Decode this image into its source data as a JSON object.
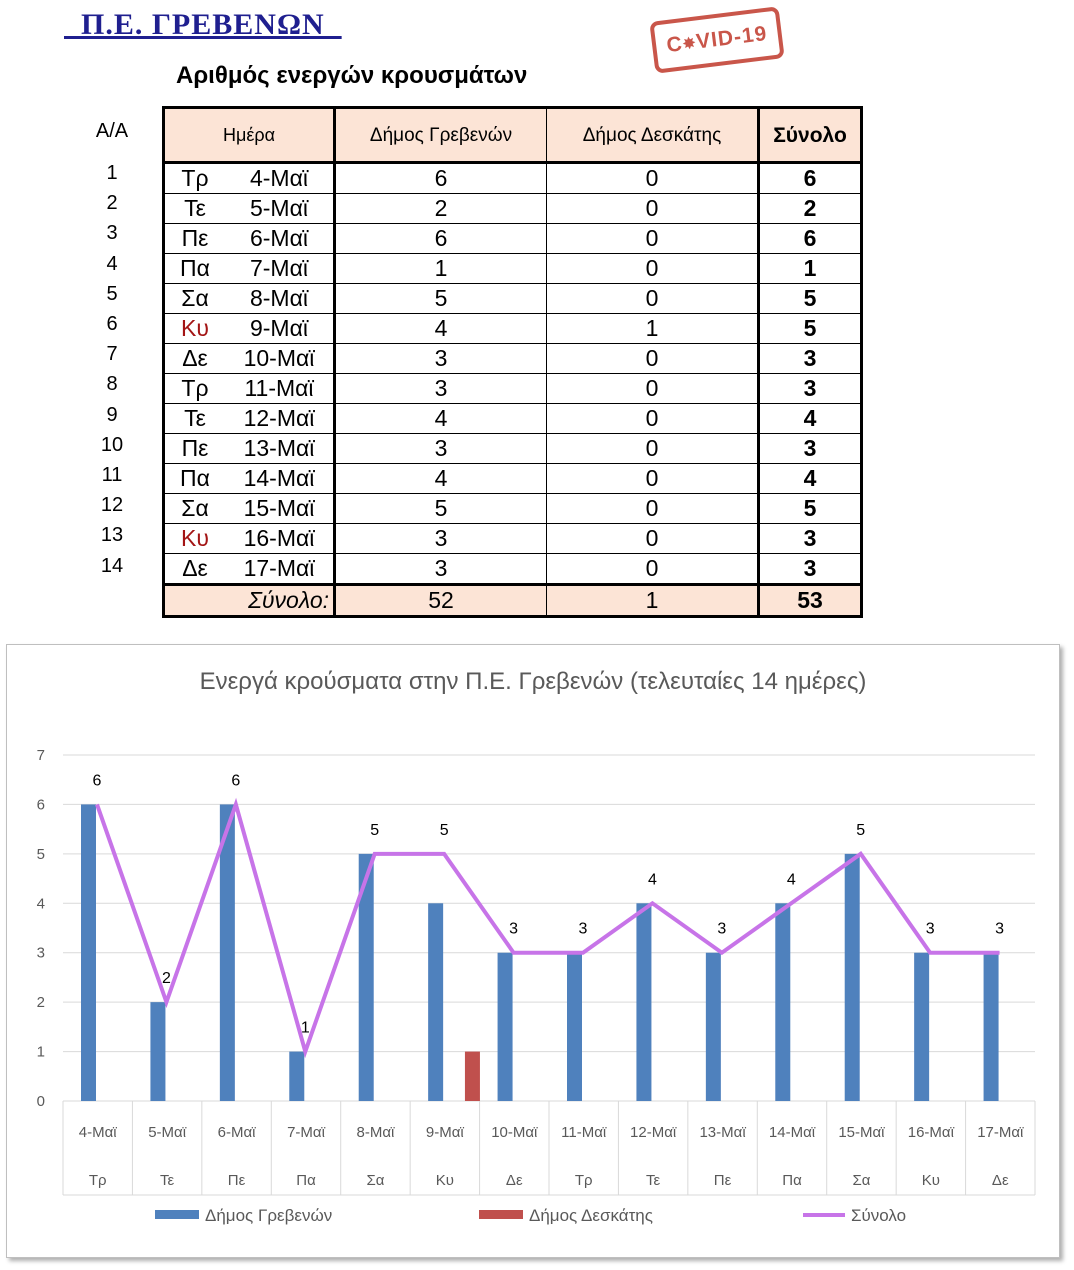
{
  "header": {
    "title": "  Π.Ε. ΓΡΕΒΕΝΩΝ  ",
    "stamp": "COVID-19",
    "subtitle": "Αριθμός ενεργών κρουσμάτων"
  },
  "table": {
    "aa_label": "Α/Α",
    "day_label": "Ημέρα",
    "col_grevena": "Δήμος Γρεβενών",
    "col_deskati": "Δήμος Δεσκάτης",
    "col_total": "Σύνολο",
    "rows": [
      {
        "aa": "1",
        "day": "Τρ",
        "date": "4-Μαϊ",
        "grevena": "6",
        "deskati": "0",
        "total": "6",
        "weekend": false
      },
      {
        "aa": "2",
        "day": "Τε",
        "date": "5-Μαϊ",
        "grevena": "2",
        "deskati": "0",
        "total": "2",
        "weekend": false
      },
      {
        "aa": "3",
        "day": "Πε",
        "date": "6-Μαϊ",
        "grevena": "6",
        "deskati": "0",
        "total": "6",
        "weekend": false
      },
      {
        "aa": "4",
        "day": "Πα",
        "date": "7-Μαϊ",
        "grevena": "1",
        "deskati": "0",
        "total": "1",
        "weekend": false
      },
      {
        "aa": "5",
        "day": "Σα",
        "date": "8-Μαϊ",
        "grevena": "5",
        "deskati": "0",
        "total": "5",
        "weekend": false
      },
      {
        "aa": "6",
        "day": "Κυ",
        "date": "9-Μαϊ",
        "grevena": "4",
        "deskati": "1",
        "total": "5",
        "weekend": true
      },
      {
        "aa": "7",
        "day": "Δε",
        "date": "10-Μαϊ",
        "grevena": "3",
        "deskati": "0",
        "total": "3",
        "weekend": false
      },
      {
        "aa": "8",
        "day": "Τρ",
        "date": "11-Μαϊ",
        "grevena": "3",
        "deskati": "0",
        "total": "3",
        "weekend": false
      },
      {
        "aa": "9",
        "day": "Τε",
        "date": "12-Μαϊ",
        "grevena": "4",
        "deskati": "0",
        "total": "4",
        "weekend": false
      },
      {
        "aa": "10",
        "day": "Πε",
        "date": "13-Μαϊ",
        "grevena": "3",
        "deskati": "0",
        "total": "3",
        "weekend": false
      },
      {
        "aa": "11",
        "day": "Πα",
        "date": "14-Μαϊ",
        "grevena": "4",
        "deskati": "0",
        "total": "4",
        "weekend": false
      },
      {
        "aa": "12",
        "day": "Σα",
        "date": "15-Μαϊ",
        "grevena": "5",
        "deskati": "0",
        "total": "5",
        "weekend": false
      },
      {
        "aa": "13",
        "day": "Κυ",
        "date": "16-Μαϊ",
        "grevena": "3",
        "deskati": "0",
        "total": "3",
        "weekend": true
      },
      {
        "aa": "14",
        "day": "Δε",
        "date": "17-Μαϊ",
        "grevena": "3",
        "deskati": "0",
        "total": "3",
        "weekend": false
      }
    ],
    "total_row": {
      "label": "Σύνολο:",
      "grevena": "52",
      "deskati": "1",
      "total": "53"
    }
  },
  "colors": {
    "grevena": "#4f81bd",
    "deskati": "#c0504d",
    "total": "#c774e8",
    "weekend_text": "#a31515"
  },
  "chart_data": {
    "type": "bar",
    "title": "Ενεργά κρούσματα στην Π.Ε. Γρεβενών (τελευταίες 14 ημέρες)",
    "categories": [
      "4-Μαϊ",
      "5-Μαϊ",
      "6-Μαϊ",
      "7-Μαϊ",
      "8-Μαϊ",
      "9-Μαϊ",
      "10-Μαϊ",
      "11-Μαϊ",
      "12-Μαϊ",
      "13-Μαϊ",
      "14-Μαϊ",
      "15-Μαϊ",
      "16-Μαϊ",
      "17-Μαϊ"
    ],
    "subcategories": [
      "Τρ",
      "Τε",
      "Πε",
      "Πα",
      "Σα",
      "Κυ",
      "Δε",
      "Τρ",
      "Τε",
      "Πε",
      "Πα",
      "Σα",
      "Κυ",
      "Δε"
    ],
    "series": [
      {
        "name": "Δήμος Γρεβενών",
        "type": "bar",
        "values": [
          6,
          2,
          6,
          1,
          5,
          4,
          3,
          3,
          4,
          3,
          4,
          5,
          3,
          3
        ]
      },
      {
        "name": "Δήμος Δεσκάτης",
        "type": "bar",
        "values": [
          0,
          0,
          0,
          0,
          0,
          1,
          0,
          0,
          0,
          0,
          0,
          0,
          0,
          0
        ]
      },
      {
        "name": "Σύνολο",
        "type": "line",
        "values": [
          6,
          2,
          6,
          1,
          5,
          5,
          3,
          3,
          4,
          3,
          4,
          5,
          3,
          3
        ],
        "data_labels": true
      }
    ],
    "ylim": [
      0,
      7
    ],
    "yticks": [
      "0",
      "1",
      "2",
      "3",
      "4",
      "5",
      "6",
      "7"
    ],
    "grid": true,
    "legend": "bottom"
  }
}
